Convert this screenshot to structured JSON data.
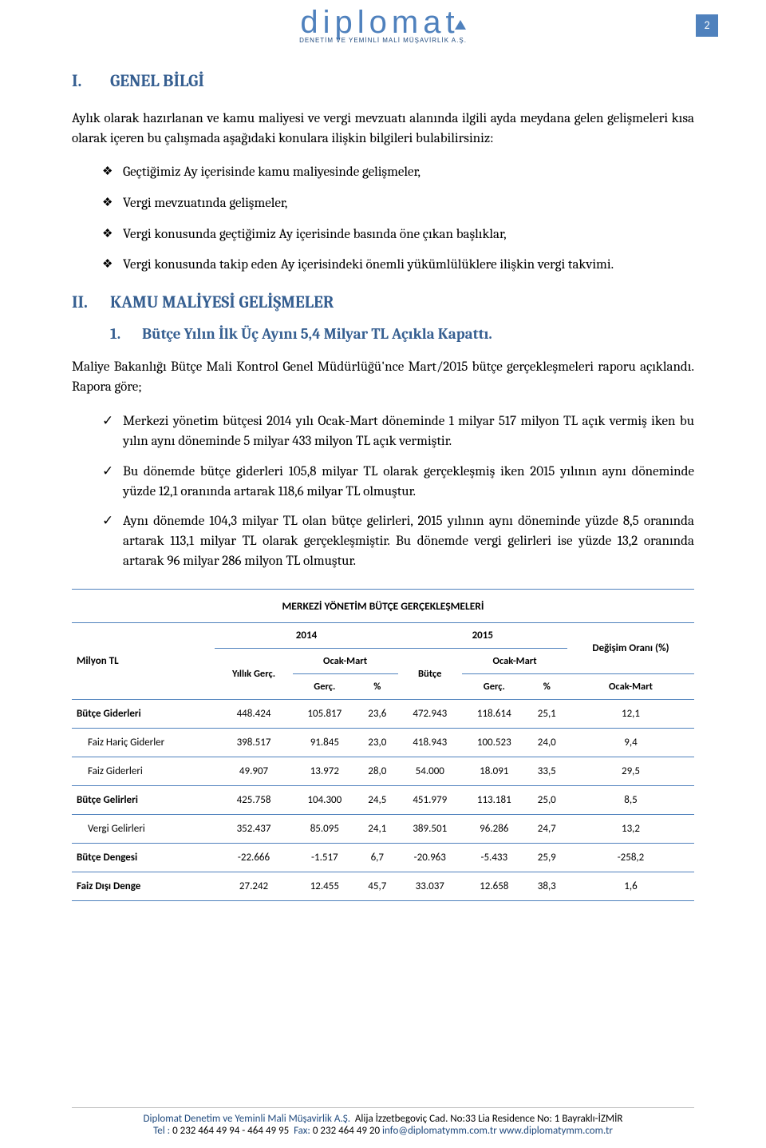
{
  "pageNumber": "2",
  "logo": {
    "brand": "diplomat",
    "sub": "DENETİM VE YEMİNLİ MALİ MÜŞAVİRLİK A.Ş."
  },
  "section1": {
    "num": "I.",
    "title": "GENEL BİLGİ",
    "intro": "Aylık olarak hazırlanan ve kamu maliyesi ve vergi mevzuatı alanında ilgili ayda meydana gelen gelişmeleri kısa olarak içeren bu çalışmada aşağıdaki konulara ilişkin bilgileri bulabilirsiniz:",
    "bullets": [
      "Geçtiğimiz Ay içerisinde kamu maliyesinde gelişmeler,",
      " Vergi mevzuatında gelişmeler,",
      "Vergi konusunda geçtiğimiz Ay içerisinde basında öne çıkan başlıklar,",
      "Vergi konusunda takip eden Ay içerisindeki önemli  yükümlülüklere ilişkin vergi takvimi."
    ]
  },
  "section2": {
    "num": "II.",
    "title": "KAMU MALİYESİ GELİŞMELER",
    "sub": {
      "num": "1.",
      "title": "Bütçe Yılın İlk Üç Ayını 5,4 Milyar TL Açıkla Kapattı."
    },
    "para": "Maliye Bakanlığı Bütçe Mali Kontrol Genel Müdürlüğü'nce Mart/2015 bütçe gerçekleşmeleri raporu açıklandı. Rapora göre;",
    "checks": [
      "Merkezi yönetim bütçesi 2014 yılı Ocak-Mart döneminde 1 milyar 517 milyon TL açık vermiş iken bu yılın aynı döneminde 5 milyar 433 milyon TL açık vermiştir.",
      "Bu dönemde bütçe giderleri 105,8 milyar TL olarak gerçekleşmiş iken 2015 yılının aynı döneminde yüzde 12,1 oranında artarak 118,6 milyar TL olmuştur.",
      "Aynı dönemde 104,3 milyar TL olan bütçe gelirleri, 2015 yılının aynı döneminde yüzde 8,5 oranında artarak 113,1 milyar TL olarak gerçekleşmiştir. Bu dönemde vergi gelirleri ise yüzde 13,2 oranında artarak 96 milyar 286 milyon TL olmuştur."
    ]
  },
  "table": {
    "title": "MERKEZİ YÖNETİM BÜTÇE GERÇEKLEŞMELERİ",
    "unit": "Milyon TL",
    "years": [
      "2014",
      "2015"
    ],
    "changeLabel": "Değişim Oranı (%)",
    "sub1": [
      "Yıllık Gerç.",
      "Ocak-Mart",
      "Bütçe",
      "Ocak-Mart",
      "Ocak-Mart"
    ],
    "sub2": [
      "Gerç.",
      "%",
      "Gerç.",
      "%"
    ],
    "rows": [
      {
        "label": "Bütçe Giderleri",
        "sub": false,
        "c": [
          "448.424",
          "105.817",
          "23,6",
          "472.943",
          "118.614",
          "25,1",
          "12,1"
        ]
      },
      {
        "label": "Faiz Hariç Giderler",
        "sub": true,
        "c": [
          "398.517",
          "91.845",
          "23,0",
          "418.943",
          "100.523",
          "24,0",
          "9,4"
        ]
      },
      {
        "label": "Faiz Giderleri",
        "sub": true,
        "c": [
          "49.907",
          "13.972",
          "28,0",
          "54.000",
          "18.091",
          "33,5",
          "29,5"
        ]
      },
      {
        "label": "Bütçe Gelirleri",
        "sub": false,
        "c": [
          "425.758",
          "104.300",
          "24,5",
          "451.979",
          "113.181",
          "25,0",
          "8,5"
        ]
      },
      {
        "label": "Vergi Gelirleri",
        "sub": true,
        "c": [
          "352.437",
          "85.095",
          "24,1",
          "389.501",
          "96.286",
          "24,7",
          "13,2"
        ]
      },
      {
        "label": "Bütçe Dengesi",
        "sub": false,
        "c": [
          "-22.666",
          "-1.517",
          "6,7",
          "-20.963",
          "-5.433",
          "25,9",
          "-258,2"
        ]
      },
      {
        "label": "Faiz Dışı Denge",
        "sub": false,
        "c": [
          "27.242",
          "12.455",
          "45,7",
          "33.037",
          "12.658",
          "38,3",
          "1,6"
        ]
      }
    ]
  },
  "footer": {
    "company": "Diplomat Denetim ve  Yeminli Mali Müşavirlik A.Ş.",
    "address": "Alija İzzetbegoviç Cad.  No:33 Lia Residence No: 1  Bayraklı-İZMİR",
    "telLabel": "Tel :",
    "tel": "0 232 464 49 94 - 464 49 95",
    "faxLabel": "Fax:",
    "fax": "0 232 464 49 20",
    "email": "info@diplomatymm.com.tr",
    "web": "www.diplomatymm.com.tr"
  },
  "marks": {
    "diamond": "❖",
    "check": "✓"
  }
}
